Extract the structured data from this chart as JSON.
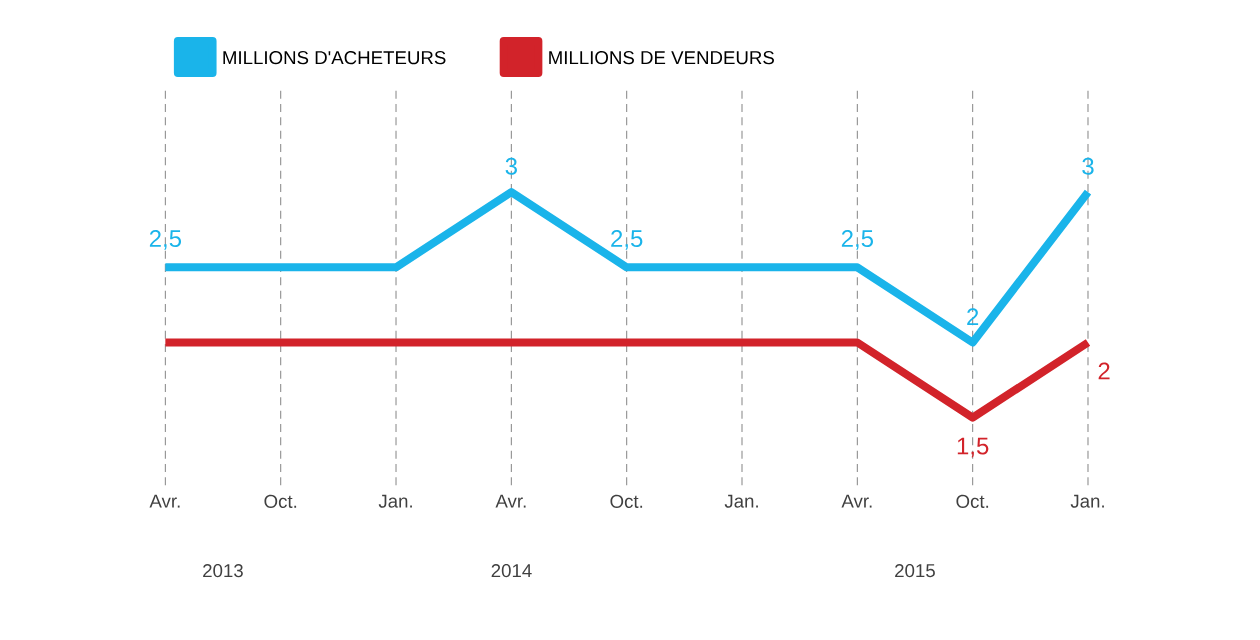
{
  "chart_data": {
    "type": "line",
    "categories": [
      "Avr.",
      "Oct.",
      "Jan.",
      "Avr.",
      "Oct.",
      "Jan.",
      "Avr.",
      "Oct.",
      "Jan."
    ],
    "series": [
      {
        "name": "MILLIONS D'ACHETEURS",
        "color": "#1ab4ea",
        "values": [
          2.5,
          2.5,
          2.5,
          3,
          2.5,
          2.5,
          2.5,
          2,
          3
        ],
        "value_labels": [
          "2,5",
          null,
          null,
          "3",
          "2,5",
          null,
          "2,5",
          "2",
          "3"
        ]
      },
      {
        "name": "MILLIONS DE VENDEURS",
        "color": "#d2232a",
        "values": [
          2,
          2,
          2,
          2,
          2,
          2,
          2,
          1.5,
          2
        ],
        "value_labels": [
          null,
          null,
          null,
          null,
          null,
          null,
          null,
          "1,5",
          "2"
        ]
      }
    ],
    "annotations": [
      "2013",
      "2014",
      "2015"
    ],
    "grid": "x",
    "legend": "top left",
    "tick_labels": "x",
    "marker": "none",
    "line_style": "solid"
  }
}
